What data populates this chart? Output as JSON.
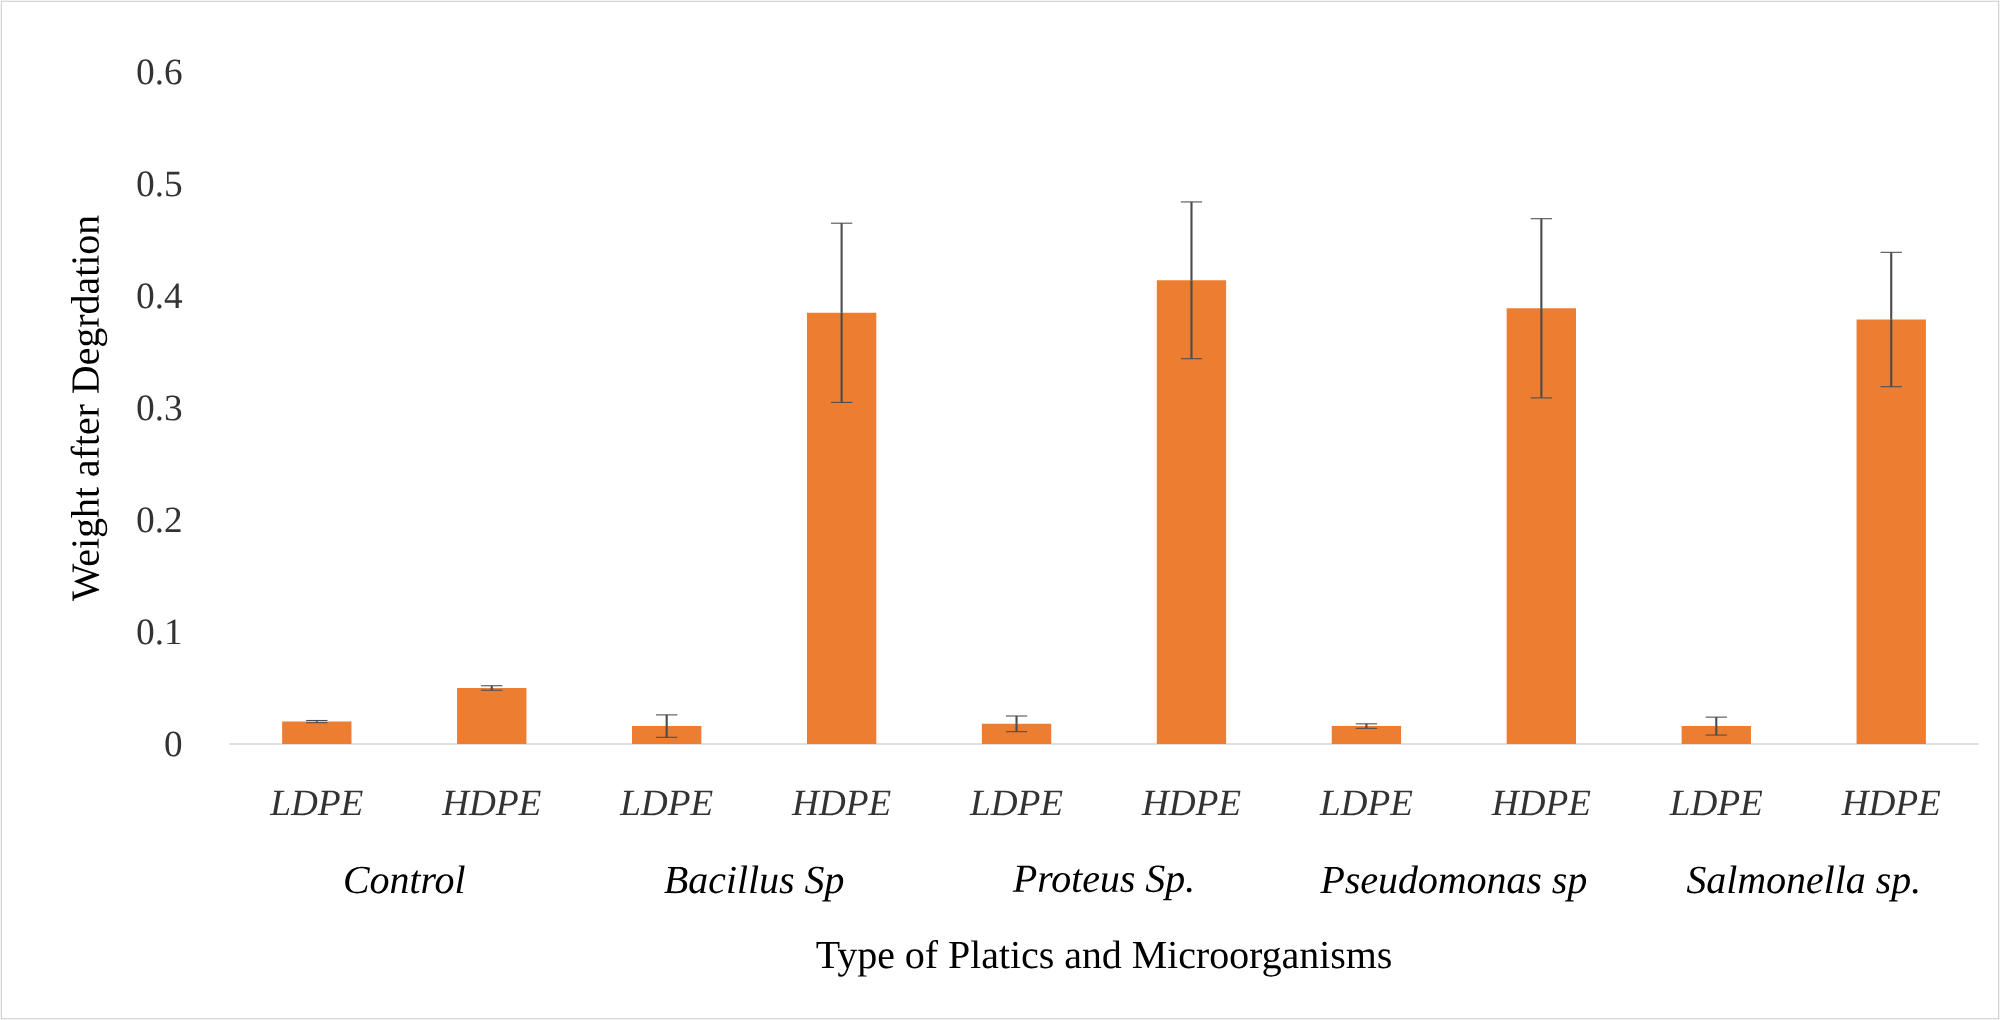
{
  "chart_data": {
    "type": "bar",
    "xlabel": "Type of Platics and Microorganisms",
    "ylabel": "Weight after Degrdation",
    "categories": [
      "*LDPE*",
      "*HDPE*",
      "*LDPE*",
      "*HDPE*",
      "*LDPE*",
      "*HDPE*",
      "*LDPE*",
      "*HDPE*",
      "*LDPE*",
      "*HDPE*"
    ],
    "values": [
      0.02,
      0.05,
      0.016,
      0.385,
      0.018,
      0.414,
      0.016,
      0.389,
      0.016,
      0.379
    ],
    "errors": [
      0.001,
      0.002,
      0.01,
      0.08,
      0.007,
      0.07,
      0.002,
      0.08,
      0.008,
      0.06
    ],
    "color": "#ed7d31",
    "annotations": [
      "*Control*",
      "*Bacillus Sp*",
      "*Proteus Sp.*",
      "*Pseudomonas sp*",
      "*Salmonella sp.*"
    ],
    "ylim": [
      0,
      0.6
    ],
    "yticks": [
      0,
      0.1,
      0.2,
      0.3,
      0.4,
      0.5,
      0.6
    ]
  }
}
